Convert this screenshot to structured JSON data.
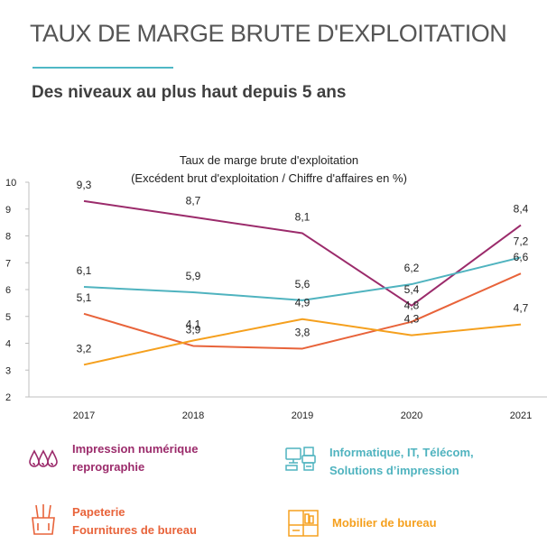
{
  "header": {
    "title": "TAUX DE MARGE BRUTE D'EXPLOITATION",
    "subtitle": "Des niveaux au plus haut depuis 5 ans"
  },
  "colors": {
    "accent_rule": "#4FB8C5",
    "impression": "#9B2B6B",
    "informatique": "#4FB3BF",
    "papeterie": "#E8633A",
    "mobilier": "#F5A01E"
  },
  "chart_data": {
    "type": "line",
    "title": "Taux de marge brute d'exploitation",
    "subtitle": "(Excédent brut d'exploitation / Chiffre d'affaires en %)",
    "xlabel": "",
    "ylabel": "",
    "categories": [
      "2017",
      "2018",
      "2019",
      "2020",
      "2021"
    ],
    "ylim": [
      2,
      10
    ],
    "yticks": [
      "2",
      "3",
      "4",
      "5",
      "6",
      "7",
      "8",
      "9",
      "10"
    ],
    "grid": false,
    "legend_position": "bottom",
    "series": [
      {
        "name": "Impression numérique\nreprographie",
        "color": "#9B2B6B",
        "values": [
          9.3,
          8.7,
          8.1,
          5.4,
          8.4
        ],
        "labels": [
          "9,3",
          "8,7",
          "8,1",
          "5,4",
          "8,4"
        ]
      },
      {
        "name": "Informatique, IT, Télécom,\nSolutions d’impression",
        "color": "#4FB3BF",
        "values": [
          6.1,
          5.9,
          5.6,
          6.2,
          7.2
        ],
        "labels": [
          "6,1",
          "5,9",
          "5,6",
          "6,2",
          "7,2"
        ]
      },
      {
        "name": "Papeterie\nFournitures de bureau",
        "color": "#E8633A",
        "values": [
          5.1,
          3.9,
          3.8,
          4.8,
          6.6
        ],
        "labels": [
          "5,1",
          "3,9",
          "3,8",
          "4,8",
          "6,6"
        ]
      },
      {
        "name": "Mobilier de bureau",
        "color": "#F5A01E",
        "values": [
          3.2,
          4.1,
          4.9,
          4.3,
          4.7
        ],
        "labels": [
          "3,2",
          "4,1",
          "4,9",
          "4,3",
          "4,7"
        ]
      }
    ]
  },
  "legend": [
    {
      "label": "Impression numérique\nreprographie",
      "icon": "ink-drops-icon",
      "color": "#9B2B6B"
    },
    {
      "label": "Informatique, IT, Télécom,\nSolutions d’impression",
      "icon": "computer-printer-icon",
      "color": "#4FB3BF"
    },
    {
      "label": "Papeterie\nFournitures de bureau",
      "icon": "pencil-cup-icon",
      "color": "#E8633A"
    },
    {
      "label": "Mobilier de bureau",
      "icon": "office-furniture-icon",
      "color": "#F5A01E"
    }
  ]
}
